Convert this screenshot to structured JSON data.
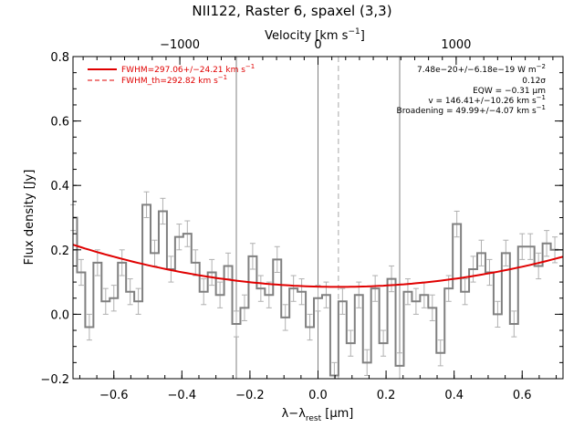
{
  "chart_data": {
    "type": "line",
    "title": "NII122, Raster 6, spaxel (3,3)",
    "xlabel_main": "λ−λ",
    "xlabel_sub": "rest",
    "xlabel_unit": " [μm]",
    "ylabel": "Flux density [Jy]",
    "top_axis_label": "Velocity [km s",
    "top_axis_exp": "−1",
    "top_axis_close": "]",
    "xlim": [
      -0.72,
      0.72
    ],
    "ylim": [
      -0.2,
      0.8
    ],
    "x_ticks": [
      -0.6,
      -0.4,
      -0.2,
      0.0,
      0.2,
      0.4,
      0.6
    ],
    "x_tick_labels": [
      "−0.6",
      "−0.4",
      "−0.2",
      "0.0",
      "0.2",
      "0.4",
      "0.6"
    ],
    "y_ticks": [
      -0.2,
      0.0,
      0.2,
      0.4,
      0.6,
      0.8
    ],
    "y_tick_labels": [
      "−0.2",
      "0.0",
      "0.2",
      "0.4",
      "0.6",
      "0.8"
    ],
    "top_ticks_velocity": [
      -1000,
      0,
      1000
    ],
    "top_tick_labels": [
      "−1000",
      "0",
      "1000"
    ],
    "velocity_per_micron": 2463,
    "vertical_lines": [
      -0.24,
      0.0,
      0.24
    ],
    "dashed_line_x": 0.06,
    "spectrum": {
      "name": "data",
      "x": [
        -0.72,
        -0.696,
        -0.672,
        -0.648,
        -0.624,
        -0.6,
        -0.576,
        -0.552,
        -0.528,
        -0.504,
        -0.48,
        -0.456,
        -0.432,
        -0.408,
        -0.384,
        -0.36,
        -0.336,
        -0.312,
        -0.288,
        -0.264,
        -0.24,
        -0.216,
        -0.192,
        -0.168,
        -0.144,
        -0.12,
        -0.096,
        -0.072,
        -0.048,
        -0.024,
        0.0,
        0.024,
        0.048,
        0.072,
        0.096,
        0.12,
        0.144,
        0.168,
        0.192,
        0.216,
        0.24,
        0.264,
        0.288,
        0.312,
        0.336,
        0.36,
        0.384,
        0.408,
        0.432,
        0.456,
        0.48,
        0.504,
        0.528,
        0.552,
        0.576,
        0.6,
        0.624,
        0.648,
        0.672,
        0.696
      ],
      "y": [
        0.3,
        0.13,
        -0.04,
        0.16,
        0.04,
        0.05,
        0.16,
        0.07,
        0.04,
        0.34,
        0.19,
        0.32,
        0.14,
        0.24,
        0.25,
        0.16,
        0.07,
        0.13,
        0.06,
        0.15,
        -0.03,
        0.02,
        0.18,
        0.08,
        0.06,
        0.17,
        -0.01,
        0.08,
        0.07,
        -0.04,
        0.05,
        0.06,
        -0.19,
        0.04,
        -0.09,
        0.06,
        -0.15,
        0.08,
        -0.09,
        0.11,
        -0.16,
        0.07,
        0.04,
        0.06,
        0.02,
        -0.12,
        0.08,
        0.28,
        0.07,
        0.14,
        0.19,
        0.13,
        0.0,
        0.19,
        -0.03,
        0.21,
        0.21,
        0.15,
        0.22,
        0.2
      ],
      "error": 0.04
    },
    "fit": {
      "name": "FWHM=297.06+/−24.21 km s",
      "name_exp": "−1",
      "center": 0.06,
      "baseline": 0.085,
      "curvature": 0.215
    },
    "fit_th_label": "FWHM_th=292.82 km s",
    "fit_th_exp": "−1",
    "annotations": {
      "flux": "7.48e−20+/−6.18e−19 W m",
      "flux_exp": "−2",
      "sigma": "0.12σ",
      "eqw": "EQW = −0.31 μm",
      "velocity": "v = 146.41+/−10.26 km s",
      "velocity_exp": "−1",
      "broadening": "Broadening = 49.99+/−4.07 km s",
      "broadening_exp": "−1"
    },
    "colors": {
      "spectrum": "#808080",
      "error": "#b0b0b0",
      "fit": "#e00000",
      "vlines": "#808080"
    },
    "legend_placement": "top-left"
  }
}
